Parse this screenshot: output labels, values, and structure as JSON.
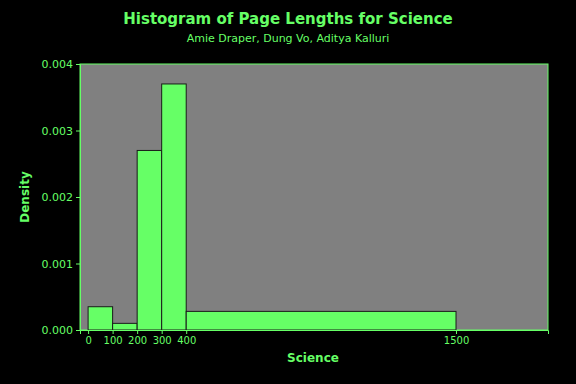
{
  "chart_data": {
    "type": "histogram",
    "title": "Histogram of Page Lengths for Science",
    "subtitle": "Amie Draper, Dung Vo, Aditya Kalluri",
    "x_label": "Science",
    "y_label": "Density",
    "bins": [
      0,
      100,
      200,
      300,
      400,
      1500
    ],
    "values": [
      0.00035,
      0.0001,
      0.0027,
      0.0037,
      0.00028
    ],
    "color": "#66ff66",
    "xlim": [
      -33,
      1875
    ],
    "ylim": [
      0,
      0.004
    ],
    "xticks": [
      0,
      100,
      200,
      300,
      400,
      1500
    ],
    "yticks": [
      {
        "value": 0,
        "label": "0.000"
      },
      {
        "value": 0.001,
        "label": "0.001"
      },
      {
        "value": 0.002,
        "label": "0.002"
      },
      {
        "value": 0.003,
        "label": "0.003"
      },
      {
        "value": 0.004,
        "label": "0.004"
      }
    ],
    "grid": false
  }
}
